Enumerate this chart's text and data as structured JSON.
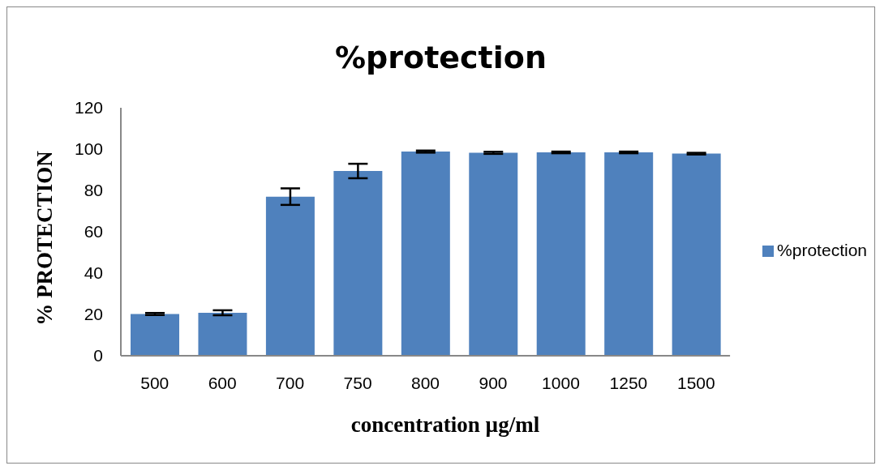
{
  "chart_data": {
    "type": "bar",
    "title": "%protection",
    "xlabel": "concentration µg/ml",
    "ylabel": "% PROTECTION",
    "categories": [
      "500",
      "600",
      "700",
      "750",
      "800",
      "900",
      "1000",
      "1250",
      "1500"
    ],
    "series": [
      {
        "name": "%protection",
        "color": "#4f81bd",
        "values": [
          20.2,
          20.8,
          77,
          89.4,
          98.8,
          98.2,
          98.4,
          98.4,
          97.8
        ],
        "errors": [
          0.5,
          1.2,
          4,
          3.5,
          0.5,
          0.5,
          0.4,
          0.4,
          0.4
        ]
      }
    ],
    "ylim": [
      0,
      120
    ],
    "yticks": [
      0,
      20,
      40,
      60,
      80,
      100,
      120
    ],
    "grid": false,
    "legend": "right"
  }
}
